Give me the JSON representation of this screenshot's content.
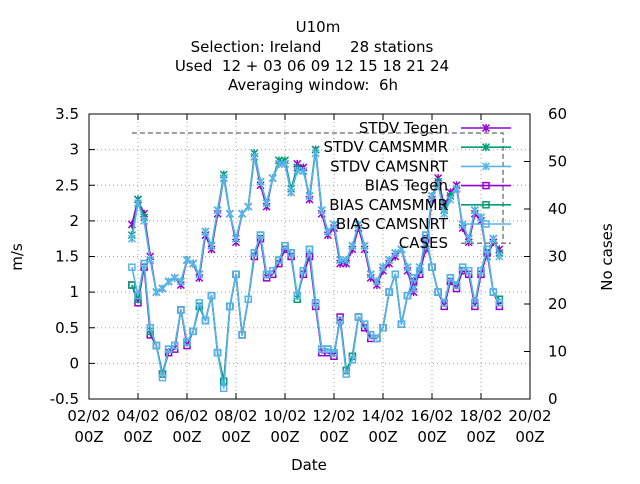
{
  "chart_data": {
    "type": "line",
    "title_lines": [
      "U10m",
      "Selection: Ireland      28 stations",
      "Used  12 + 03 06 09 12 15 18 21 24",
      "Averaging window:  6h"
    ],
    "xlabel": "Date",
    "ylabel": "m/s",
    "y2label": "No cases",
    "ylim": [
      -0.5,
      3.5
    ],
    "y2lim": [
      0,
      60
    ],
    "xlim": [
      0,
      9
    ],
    "x_tick_labels": [
      [
        "02/02",
        "00Z"
      ],
      [
        "04/02",
        "00Z"
      ],
      [
        "06/02",
        "00Z"
      ],
      [
        "08/02",
        "00Z"
      ],
      [
        "10/02",
        "00Z"
      ],
      [
        "12/02",
        "00Z"
      ],
      [
        "14/02",
        "00Z"
      ],
      [
        "16/02",
        "00Z"
      ],
      [
        "18/02",
        "00Z"
      ],
      [
        "20/02",
        "00Z"
      ]
    ],
    "y_ticks": [
      -0.5,
      0,
      0.5,
      1,
      1.5,
      2,
      2.5,
      3,
      3.5
    ],
    "y_tick_labels": [
      "-0.5",
      "0",
      "0.5",
      "1",
      "1.5",
      "2",
      "2.5",
      "3",
      "3.5"
    ],
    "y2_ticks": [
      0,
      10,
      20,
      30,
      40,
      50,
      60
    ],
    "y2_tick_labels": [
      "0",
      "10",
      "20",
      "30",
      "40",
      "50",
      "60"
    ],
    "grid": true,
    "legend_position": "top-right",
    "x_start_date": "02/02 00Z",
    "x_unit": "2-day interval",
    "x": [
      0.875,
      1.0,
      1.125,
      1.25,
      1.375,
      1.5,
      1.625,
      1.75,
      1.875,
      2.0,
      2.125,
      2.25,
      2.375,
      2.5,
      2.625,
      2.75,
      2.875,
      3.0,
      3.125,
      3.25,
      3.375,
      3.5,
      3.625,
      3.75,
      3.875,
      4.0,
      4.125,
      4.25,
      4.375,
      4.5,
      4.625,
      4.75,
      4.875,
      5.0,
      5.125,
      5.25,
      5.375,
      5.5,
      5.625,
      5.75,
      5.875,
      6.0,
      6.125,
      6.25,
      6.375,
      6.5,
      6.625,
      6.75,
      6.875,
      7.0,
      7.125,
      7.25,
      7.375,
      7.5,
      7.625,
      7.75,
      7.875,
      8.0,
      8.125,
      8.25,
      8.375
    ],
    "series": [
      {
        "name": "STDV Tegen",
        "color": "#9400d3",
        "marker": "x",
        "values": [
          1.95,
          2.3,
          2.1,
          1.5,
          1.0,
          1.05,
          1.15,
          1.2,
          1.1,
          1.45,
          1.4,
          1.2,
          1.8,
          1.6,
          2.1,
          2.6,
          2.1,
          1.7,
          2.1,
          2.2,
          2.9,
          2.5,
          2.2,
          2.6,
          2.8,
          2.8,
          2.4,
          2.8,
          2.75,
          2.3,
          3.0,
          2.1,
          1.8,
          1.9,
          1.4,
          1.4,
          1.6,
          1.9,
          1.6,
          1.2,
          1.1,
          1.3,
          1.4,
          1.5,
          1.6,
          1.3,
          1.0,
          1.3,
          1.6,
          2.3,
          2.6,
          2.2,
          2.4,
          2.5,
          1.9,
          1.7,
          2.1,
          2.0,
          1.5,
          1.7,
          1.6
        ]
      },
      {
        "name": "STDV CAMSMMR",
        "color": "#009e73",
        "marker": "x",
        "values": [
          1.8,
          2.3,
          2.05,
          1.45,
          1.0,
          1.05,
          1.15,
          1.2,
          1.15,
          1.45,
          1.4,
          1.25,
          1.85,
          1.65,
          2.15,
          2.65,
          2.1,
          1.75,
          2.1,
          2.2,
          2.95,
          2.55,
          2.25,
          2.6,
          2.85,
          2.85,
          2.45,
          2.75,
          2.7,
          2.35,
          3.0,
          2.15,
          1.85,
          1.95,
          1.45,
          1.45,
          1.65,
          1.95,
          1.65,
          1.25,
          1.15,
          1.35,
          1.45,
          1.55,
          1.6,
          1.35,
          1.05,
          1.35,
          1.65,
          2.35,
          2.55,
          2.15,
          2.35,
          2.45,
          1.95,
          1.75,
          2.15,
          2.05,
          1.5,
          1.75,
          1.55
        ]
      },
      {
        "name": "STDV CAMSNRT",
        "color": "#56b4e9",
        "marker": "x",
        "values": [
          1.75,
          2.25,
          2.0,
          1.45,
          1.0,
          1.05,
          1.15,
          1.2,
          1.15,
          1.45,
          1.4,
          1.25,
          1.85,
          1.65,
          2.15,
          2.6,
          2.1,
          1.75,
          2.1,
          2.2,
          2.9,
          2.55,
          2.25,
          2.6,
          2.8,
          2.8,
          2.4,
          2.7,
          2.7,
          2.35,
          2.95,
          2.15,
          1.85,
          1.95,
          1.45,
          1.45,
          1.65,
          1.95,
          1.65,
          1.25,
          1.15,
          1.35,
          1.45,
          1.55,
          1.6,
          1.35,
          1.05,
          1.35,
          1.65,
          2.35,
          2.5,
          2.1,
          2.3,
          2.45,
          1.95,
          1.75,
          2.15,
          2.05,
          1.5,
          1.75,
          1.5
        ]
      },
      {
        "name": "BIAS Tegen",
        "color": "#9400d3",
        "marker": "square",
        "values": [
          1.1,
          0.85,
          1.35,
          0.4,
          0.25,
          -0.15,
          0.15,
          0.2,
          0.75,
          0.25,
          0.45,
          0.8,
          0.6,
          0.95,
          0.15,
          -0.25,
          0.8,
          1.25,
          0.4,
          0.9,
          1.5,
          1.75,
          1.2,
          1.25,
          1.4,
          1.6,
          1.5,
          0.95,
          1.25,
          1.5,
          0.8,
          0.15,
          0.15,
          0.1,
          0.65,
          -0.1,
          0.1,
          0.65,
          0.5,
          0.35,
          0.35,
          0.5,
          1.0,
          1.25,
          0.55,
          0.95,
          1.15,
          1.25,
          1.75,
          1.35,
          1.0,
          0.8,
          1.15,
          1.05,
          1.3,
          1.25,
          0.8,
          1.25,
          1.55,
          1.0,
          0.8
        ]
      },
      {
        "name": "BIAS CAMSMMR",
        "color": "#009e73",
        "marker": "square",
        "values": [
          1.1,
          0.9,
          1.4,
          0.45,
          0.25,
          -0.15,
          0.2,
          0.25,
          0.75,
          0.3,
          0.45,
          0.8,
          0.6,
          0.95,
          0.15,
          -0.25,
          0.8,
          1.25,
          0.4,
          0.9,
          1.55,
          1.8,
          1.25,
          1.3,
          1.45,
          1.65,
          1.55,
          0.9,
          1.3,
          1.6,
          0.85,
          0.2,
          0.2,
          0.15,
          0.6,
          -0.1,
          0.1,
          0.65,
          0.55,
          0.4,
          0.35,
          0.5,
          1.0,
          1.25,
          0.55,
          0.95,
          1.2,
          1.3,
          1.8,
          1.35,
          1.0,
          0.85,
          1.2,
          1.1,
          1.35,
          1.3,
          0.85,
          1.3,
          1.6,
          1.0,
          0.9
        ]
      },
      {
        "name": "BIAS CAMSNRT",
        "color": "#56b4e9",
        "marker": "square",
        "values": [
          1.35,
          0.95,
          1.4,
          0.5,
          0.25,
          -0.2,
          0.2,
          0.25,
          0.75,
          0.3,
          0.45,
          0.85,
          0.6,
          0.95,
          0.15,
          -0.35,
          0.8,
          1.25,
          0.4,
          0.9,
          1.55,
          1.8,
          1.25,
          1.3,
          1.45,
          1.65,
          1.55,
          0.95,
          1.3,
          1.6,
          0.85,
          0.2,
          0.2,
          0.15,
          0.6,
          -0.15,
          0.05,
          0.65,
          0.55,
          0.4,
          0.35,
          0.5,
          1.0,
          1.25,
          0.55,
          0.95,
          1.2,
          1.3,
          1.8,
          1.35,
          1.0,
          0.85,
          1.2,
          1.1,
          1.35,
          1.3,
          0.85,
          1.3,
          1.6,
          1.0,
          0.85
        ]
      }
    ],
    "cases": {
      "name": "CASES",
      "color": "#808080",
      "style": "dashed",
      "axis": "y2",
      "x_start": 0.875,
      "x_end": 8.45,
      "value": 56,
      "drop_to": 33
    }
  }
}
